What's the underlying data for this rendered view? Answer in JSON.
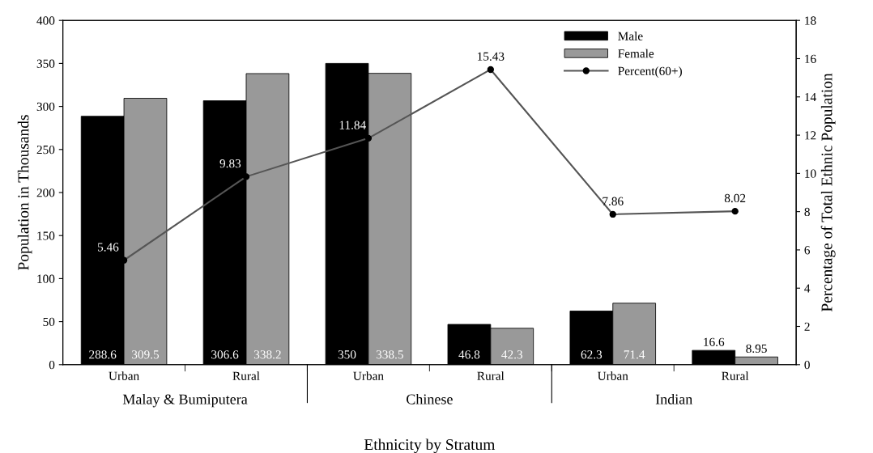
{
  "chart_data": {
    "type": "bar",
    "xlabel": "Ethnicity by Stratum",
    "ylabel": "Population in Thousands",
    "y2label": "Percentage of Total Ethnic Population",
    "categories": [
      "Urban",
      "Rural",
      "Urban",
      "Rural",
      "Urban",
      "Rural"
    ],
    "annotations": [
      "Malay & Bumiputera",
      "Chinese",
      "Indian"
    ],
    "series": [
      {
        "name": "Male",
        "color": "#000000",
        "values": [
          288.6,
          306.6,
          350,
          46.8,
          62.3,
          16.6
        ]
      },
      {
        "name": "Female",
        "color": "#999999",
        "values": [
          309.5,
          338.2,
          338.5,
          42.3,
          71.4,
          8.95
        ]
      },
      {
        "name": "Percent(60+)",
        "type": "line",
        "axis": "y2",
        "color": "#555555",
        "marker": "circle",
        "values": [
          5.46,
          9.83,
          11.84,
          15.43,
          7.86,
          8.02
        ]
      }
    ],
    "ylim": [
      0,
      400
    ],
    "yticks": [
      0,
      50,
      100,
      150,
      200,
      250,
      300,
      350,
      400
    ],
    "y2lim": [
      0,
      18
    ],
    "y2ticks": [
      0,
      2,
      4,
      6,
      8,
      10,
      12,
      14,
      16,
      18
    ],
    "data_labels": true,
    "grid": false,
    "legend": "top right"
  }
}
